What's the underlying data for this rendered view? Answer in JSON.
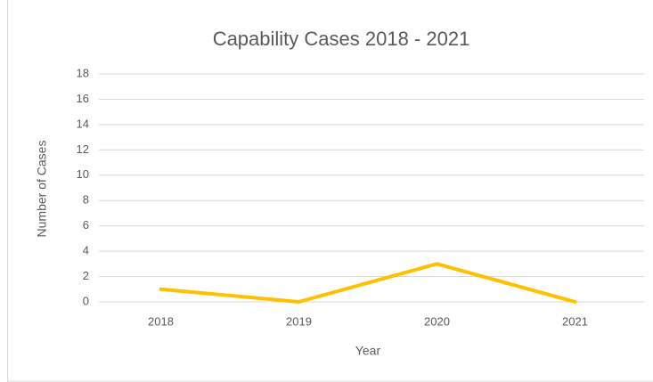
{
  "chart_data": {
    "type": "line",
    "title": "Capability Cases 2018 - 2021",
    "x_label": "Year",
    "y_label": "Number of Cases",
    "categories": [
      "2018",
      "2019",
      "2020",
      "2021"
    ],
    "series": [
      {
        "name": "Number of Cases",
        "color": "#ffc000",
        "values": [
          1,
          0,
          3,
          0
        ]
      }
    ],
    "ylim": [
      0,
      18
    ],
    "yticks": [
      0,
      2,
      4,
      6,
      8,
      10,
      12,
      14,
      16,
      18
    ],
    "grid": true
  }
}
